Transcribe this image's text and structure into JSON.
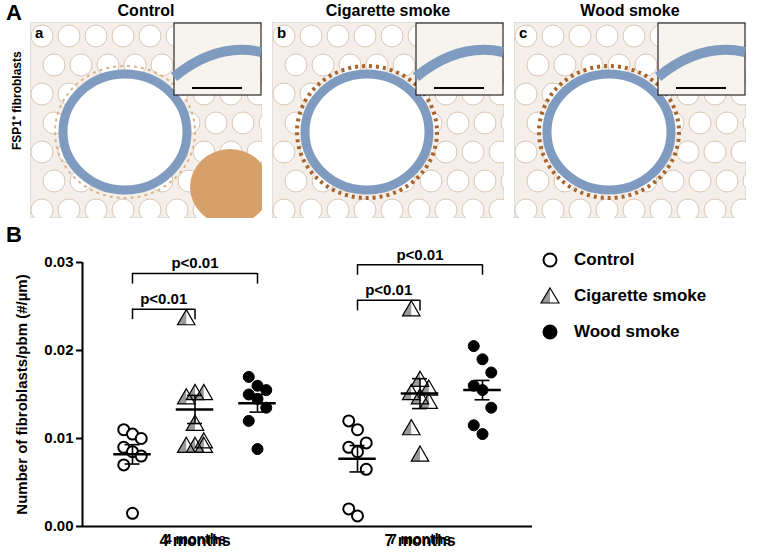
{
  "panel_A": {
    "label": "A",
    "row_label": "FSP1⁺ fibroblasts",
    "images": [
      {
        "letter": "a",
        "title": "Control"
      },
      {
        "letter": "b",
        "title": "Cigarette smoke"
      },
      {
        "letter": "c",
        "title": "Wood smoke"
      }
    ]
  },
  "chart_data": {
    "type": "scatter",
    "panel_label": "B",
    "y_label": "Number of fibroblasts/pbm (#/µm)",
    "categories": [
      "4 months",
      "7 months"
    ],
    "ylim": [
      0,
      0.03
    ],
    "yticks": [
      {
        "value": 0,
        "label": "0.00"
      },
      0.01,
      0.02,
      0.03
    ],
    "series": [
      {
        "name": "Control",
        "color": "#000000",
        "marker": "circle-open",
        "values": [
          [
            0.011,
            0.0105,
            0.01,
            0.009,
            0.0085,
            0.008,
            0.007,
            0.0015
          ],
          [
            0.012,
            0.011,
            0.0095,
            0.009,
            0.0085,
            0.0065,
            0.002,
            0.0012
          ]
        ],
        "mean": [
          0.0082,
          0.0077
        ],
        "sem": [
          0.0011,
          0.0015
        ]
      },
      {
        "name": "Cigarette smoke",
        "color": "#000000",
        "marker": "triangle-half",
        "values": [
          [
            0.0235,
            0.015,
            0.015,
            0.0145,
            0.0115,
            0.0095,
            0.009,
            0.009,
            0.009
          ],
          [
            0.0245,
            0.0165,
            0.0155,
            0.015,
            0.0145,
            0.014,
            0.011,
            0.008
          ]
        ],
        "mean": [
          0.0133,
          0.0151
        ],
        "sem": [
          0.0016,
          0.0017
        ]
      },
      {
        "name": "Wood smoke",
        "color": "#000000",
        "marker": "circle-filled",
        "values": [
          [
            0.017,
            0.016,
            0.0155,
            0.015,
            0.0145,
            0.0135,
            0.012,
            0.0088
          ],
          [
            0.0205,
            0.019,
            0.0175,
            0.016,
            0.0155,
            0.0135,
            0.0115,
            0.0105
          ]
        ],
        "mean": [
          0.014,
          0.0155
        ],
        "sem": [
          0.001,
          0.0011
        ]
      }
    ],
    "annotations": [
      {
        "category": "4 months",
        "between": [
          "Control",
          "Cigarette smoke"
        ],
        "text": "p<0.01"
      },
      {
        "category": "4 months",
        "between": [
          "Control",
          "Wood smoke"
        ],
        "text": "p<0.01"
      },
      {
        "category": "7 months",
        "between": [
          "Control",
          "Cigarette smoke"
        ],
        "text": "p<0.01"
      },
      {
        "category": "7 months",
        "between": [
          "Control",
          "Wood smoke"
        ],
        "text": "p<0.01"
      }
    ]
  }
}
